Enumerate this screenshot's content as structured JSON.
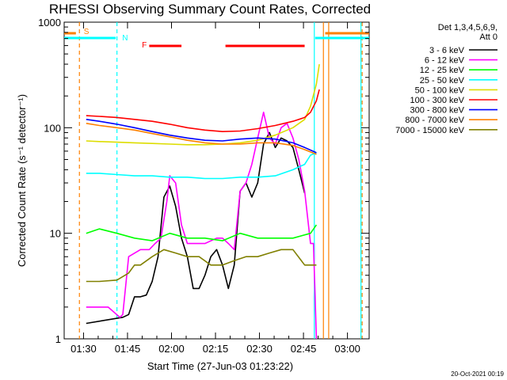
{
  "chart_data": {
    "type": "line",
    "title": "RHESSI Observing Summary Count Rates, Corrected",
    "xlabel": "Start Time (27-Jun-03 01:23:22)",
    "ylabel": "Corrected Count Rate (s⁻¹ detector⁻¹)",
    "yscale": "log",
    "ylim": [
      1,
      1000
    ],
    "xlim_minutes": [
      0,
      104
    ],
    "x_ticks": [
      {
        "label": "01:30",
        "minutes": 6.6
      },
      {
        "label": "01:45",
        "minutes": 21.6
      },
      {
        "label": "02:00",
        "minutes": 36.6
      },
      {
        "label": "02:15",
        "minutes": 51.6
      },
      {
        "label": "02:30",
        "minutes": 66.6
      },
      {
        "label": "02:45",
        "minutes": 81.6
      },
      {
        "label": "03:00",
        "minutes": 96.6
      }
    ],
    "y_ticks": [
      {
        "label": "1",
        "value": 1
      },
      {
        "label": "10",
        "value": 10
      },
      {
        "label": "100",
        "value": 100
      },
      {
        "label": "1000",
        "value": 1000
      }
    ],
    "legend_header": [
      "Det 1,3,4,5,6,9,",
      "Att 0"
    ],
    "series": [
      {
        "name": "3 - 6 keV",
        "color": "#000000",
        "x": [
          7.5,
          20,
          22,
          24,
          26,
          28,
          30,
          32,
          34,
          36,
          38,
          40,
          42,
          44,
          46,
          48,
          50,
          52,
          54,
          56,
          58,
          60,
          62,
          64,
          66,
          68,
          70,
          72,
          74,
          76,
          78,
          80,
          82
        ],
        "y": [
          1.4,
          1.6,
          1.7,
          2.5,
          2.5,
          2.6,
          3.5,
          6,
          22,
          28,
          18,
          9,
          6,
          3,
          3,
          4,
          6,
          7,
          5,
          3,
          5,
          25,
          30,
          22,
          30,
          70,
          90,
          65,
          80,
          75,
          65,
          40,
          24
        ]
      },
      {
        "name": "6 - 12 keV",
        "color": "#ff00ff",
        "x": [
          7.5,
          12,
          15,
          19,
          20,
          22,
          26,
          29,
          31,
          33,
          35,
          36,
          38,
          40,
          42,
          44,
          48,
          52,
          54,
          56,
          58,
          60,
          62,
          64,
          66,
          68,
          70,
          72,
          74,
          76,
          78,
          80,
          82,
          84,
          85,
          86
        ],
        "y": [
          2,
          2,
          2,
          1.6,
          1.7,
          6,
          7,
          7,
          8,
          9,
          20,
          35,
          30,
          12,
          8,
          8,
          8,
          9,
          9,
          8,
          7,
          25,
          30,
          45,
          80,
          140,
          80,
          70,
          100,
          110,
          80,
          50,
          25,
          8,
          8,
          1
        ]
      },
      {
        "name": "12 - 25 keV",
        "color": "#00ff00",
        "x": [
          7.5,
          12,
          18,
          24,
          30,
          36,
          42,
          48,
          54,
          60,
          66,
          72,
          78,
          84,
          86
        ],
        "y": [
          10,
          11,
          10,
          9,
          8.5,
          10,
          9,
          9,
          8.5,
          10,
          9,
          9,
          9,
          10,
          12
        ]
      },
      {
        "name": "25 - 50 keV",
        "color": "#00ffff",
        "x": [
          7.5,
          12,
          18,
          24,
          30,
          36,
          42,
          48,
          54,
          60,
          66,
          72,
          78,
          82,
          84,
          86
        ],
        "y": [
          37,
          37,
          36,
          35,
          35,
          34,
          34,
          33,
          33,
          34,
          34,
          35,
          40,
          45,
          55,
          58
        ]
      },
      {
        "name": "50 - 100 keV",
        "color": "#dddd00",
        "x": [
          7.5,
          12,
          18,
          24,
          30,
          36,
          42,
          48,
          54,
          60,
          66,
          72,
          78,
          82,
          84,
          86,
          87
        ],
        "y": [
          75,
          74,
          73,
          72,
          71,
          70,
          69,
          69,
          70,
          72,
          76,
          85,
          100,
          120,
          160,
          260,
          400
        ]
      },
      {
        "name": "100 - 300 keV",
        "color": "#ff0000",
        "x": [
          7.5,
          12,
          18,
          24,
          30,
          36,
          42,
          48,
          54,
          60,
          66,
          72,
          78,
          82,
          84,
          86,
          87
        ],
        "y": [
          130,
          128,
          125,
          120,
          115,
          108,
          100,
          95,
          92,
          93,
          98,
          105,
          115,
          125,
          140,
          180,
          230
        ]
      },
      {
        "name": "300 - 800 keV",
        "color": "#0000ff",
        "x": [
          7.5,
          12,
          18,
          24,
          30,
          36,
          42,
          48,
          54,
          60,
          66,
          72,
          78,
          82,
          86
        ],
        "y": [
          120,
          115,
          108,
          100,
          92,
          85,
          80,
          76,
          75,
          78,
          80,
          78,
          72,
          65,
          58
        ]
      },
      {
        "name": "800 - 7000 keV",
        "color": "#ff8000",
        "x": [
          7.5,
          12,
          18,
          24,
          30,
          36,
          42,
          48,
          54,
          60,
          66,
          72,
          78,
          82,
          86
        ],
        "y": [
          110,
          105,
          100,
          95,
          88,
          82,
          76,
          72,
          70,
          70,
          72,
          72,
          68,
          62,
          56
        ]
      },
      {
        "name": "7000 - 15000 keV",
        "color": "#808000",
        "x": [
          7.5,
          12,
          18,
          22,
          24,
          26,
          30,
          34,
          38,
          42,
          46,
          50,
          54,
          58,
          62,
          66,
          70,
          74,
          78,
          82,
          86
        ],
        "y": [
          3.5,
          3.5,
          3.6,
          4.2,
          5,
          5,
          6,
          7,
          6.5,
          6,
          6,
          5,
          5,
          5.5,
          6,
          6,
          6.5,
          7,
          7,
          5,
          5
        ]
      }
    ],
    "annotations": [
      {
        "text": "S",
        "color": "#ff8000"
      },
      {
        "text": "N",
        "color": "#00ffff"
      },
      {
        "text": "F",
        "color": "#ff0000"
      }
    ],
    "flag_bars": [
      {
        "label": "S",
        "color": "#ff8000",
        "x_start": 0,
        "x_end": 4
      },
      {
        "label": "S",
        "color": "#ff8000",
        "x_start": 89,
        "x_end": 104
      },
      {
        "label": "N",
        "color": "#00ffff",
        "x_start": 0,
        "x_end": 17.6
      },
      {
        "label": "N",
        "color": "#00ffff",
        "x_start": 85.6,
        "x_end": 104
      },
      {
        "label": "F",
        "color": "#ff0000",
        "x_start": 29,
        "x_end": 40
      },
      {
        "label": "F",
        "color": "#ff0000",
        "x_start": 55,
        "x_end": 82
      }
    ],
    "vlines": [
      {
        "minutes": 5.2,
        "color": "#ff8000",
        "style": "dashed"
      },
      {
        "minutes": 18.0,
        "color": "#00ffff",
        "style": "dashed"
      },
      {
        "minutes": 85.3,
        "color": "#00ffff",
        "style": "solid"
      },
      {
        "minutes": 88.4,
        "color": "#ff8000",
        "style": "solid"
      },
      {
        "minutes": 90.2,
        "color": "#ff8000",
        "style": "solid"
      },
      {
        "minutes": 101.2,
        "color": "#00ffff",
        "style": "solid"
      },
      {
        "minutes": 101.6,
        "color": "#ff8000",
        "style": "dashed"
      }
    ]
  },
  "footer": {
    "timestamp": "20-Oct-2021 00:19"
  }
}
